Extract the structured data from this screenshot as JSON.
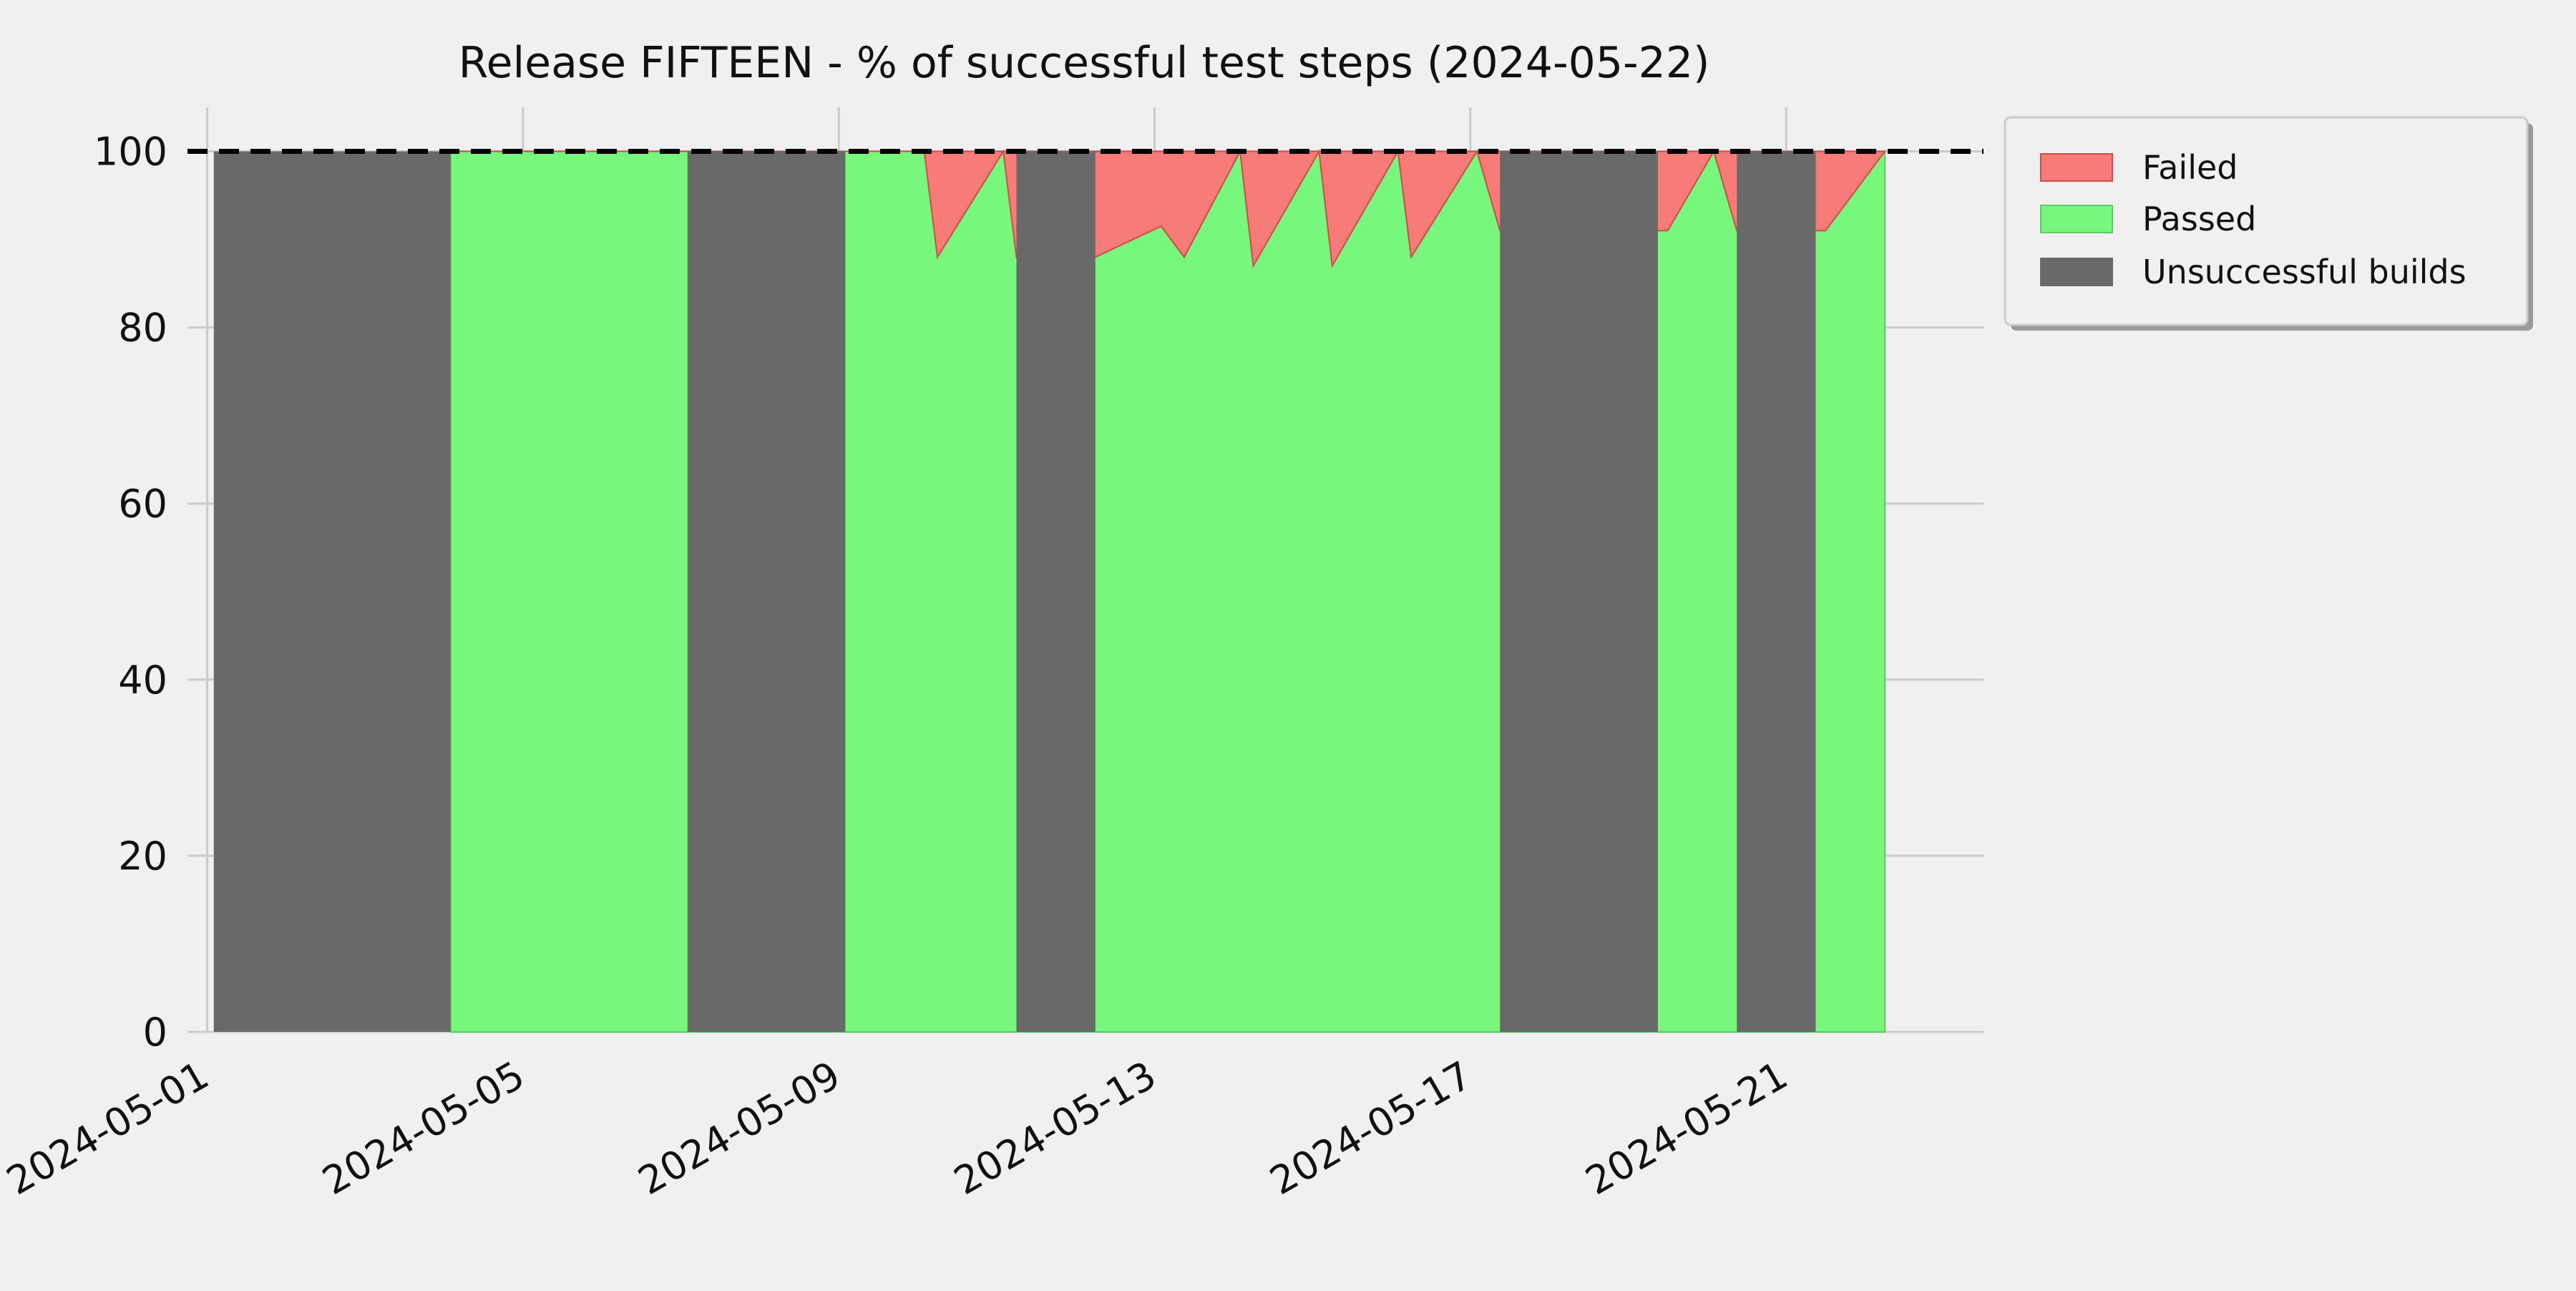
{
  "chart_data": {
    "type": "area",
    "title": "Release FIFTEEN - % of successful test steps (2024-05-22)",
    "xlabel": "",
    "ylabel": "",
    "x_axis": {
      "type": "date",
      "range": [
        "2024-04-30T18:00",
        "2024-05-23T12:00"
      ],
      "ticks": [
        "2024-05-01",
        "2024-05-05",
        "2024-05-09",
        "2024-05-13",
        "2024-05-17",
        "2024-05-21"
      ]
    },
    "y_axis": {
      "range": [
        0,
        105
      ],
      "ticks": [
        0,
        20,
        40,
        60,
        80,
        100
      ]
    },
    "grid": true,
    "legend_position": "outside-right-top",
    "reference_line": {
      "value": 100,
      "style": "dashed",
      "color": "#000000"
    },
    "colors": {
      "failed": "#f77b77",
      "failed_edge": "#d44a4a",
      "passed": "#77f77b",
      "passed_edge": "#5ccc60",
      "unsuccessful": "#696969",
      "background": "#f0f0f0",
      "grid": "#cbcbcb"
    },
    "legend": [
      {
        "key": "failed",
        "label": "Failed"
      },
      {
        "key": "passed",
        "label": "Passed"
      },
      {
        "key": "unsuccessful",
        "label": "Unsuccessful builds"
      }
    ],
    "series": [
      {
        "name": "Passed",
        "key": "passed",
        "points": [
          {
            "x": "2024-05-04T02:00",
            "y": 100
          },
          {
            "x": "2024-05-07T02:00",
            "y": 100
          },
          {
            "x": "2024-05-09T02:00",
            "y": 100
          },
          {
            "x": "2024-05-10T02:00",
            "y": 100
          },
          {
            "x": "2024-05-10T06:00",
            "y": 88
          },
          {
            "x": "2024-05-11T02:00",
            "y": 100
          },
          {
            "x": "2024-05-11T06:00",
            "y": 88
          },
          {
            "x": "2024-05-12T06:00",
            "y": 88
          },
          {
            "x": "2024-05-13T02:00",
            "y": 91.5
          },
          {
            "x": "2024-05-13T09:00",
            "y": 88
          },
          {
            "x": "2024-05-14T02:00",
            "y": 100
          },
          {
            "x": "2024-05-14T06:00",
            "y": 87
          },
          {
            "x": "2024-05-15T02:00",
            "y": 100
          },
          {
            "x": "2024-05-15T06:00",
            "y": 87
          },
          {
            "x": "2024-05-16T02:00",
            "y": 100
          },
          {
            "x": "2024-05-16T06:00",
            "y": 88
          },
          {
            "x": "2024-05-17T02:00",
            "y": 100
          },
          {
            "x": "2024-05-17T09:00",
            "y": 91
          },
          {
            "x": "2024-05-19T12:00",
            "y": 91
          },
          {
            "x": "2024-05-20T02:00",
            "y": 100
          },
          {
            "x": "2024-05-20T09:00",
            "y": 91
          },
          {
            "x": "2024-05-21T12:00",
            "y": 91
          },
          {
            "x": "2024-05-22T06:00",
            "y": 100
          }
        ]
      },
      {
        "name": "Failed",
        "key": "failed",
        "note_y": "remaining share up to 100"
      },
      {
        "name": "Unsuccessful builds",
        "key": "unsuccessful",
        "spans": [
          {
            "start": "2024-05-01T02:00",
            "end": "2024-05-04T02:00",
            "y": 100
          },
          {
            "start": "2024-05-07T02:00",
            "end": "2024-05-09T02:00",
            "y": 100
          },
          {
            "start": "2024-05-11T06:00",
            "end": "2024-05-12T06:00",
            "y": 100
          },
          {
            "start": "2024-05-17T09:00",
            "end": "2024-05-19T09:00",
            "y": 100
          },
          {
            "start": "2024-05-20T09:00",
            "end": "2024-05-21T09:00",
            "y": 100
          }
        ]
      }
    ]
  }
}
